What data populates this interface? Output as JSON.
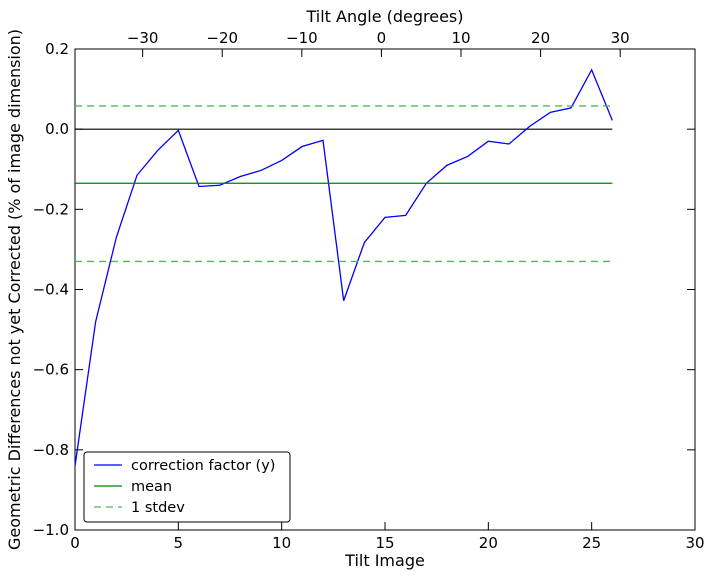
{
  "chart_data": {
    "type": "line",
    "title": "",
    "xlabel": "Tilt Image",
    "ylabel": "Geometric Differences not yet Corrected (% of image dimension)",
    "x2label": "Tilt Angle (degrees)",
    "xlim": [
      0,
      30
    ],
    "ylim": [
      -1.0,
      0.2
    ],
    "x2lim": [
      -38.5,
      39.4
    ],
    "xticks": [
      0,
      5,
      10,
      15,
      20,
      25,
      30
    ],
    "xtick_labels": [
      "0",
      "5",
      "10",
      "15",
      "20",
      "25",
      "30"
    ],
    "yticks": [
      -1.0,
      -0.8,
      -0.6,
      -0.4,
      -0.2,
      0.0,
      0.2
    ],
    "ytick_labels": [
      "−1.0",
      "−0.8",
      "−0.6",
      "−0.4",
      "−0.2",
      "0.0",
      "0.2"
    ],
    "x2ticks": [
      -30,
      -20,
      -10,
      0,
      10,
      20,
      30
    ],
    "x2tick_labels": [
      "−30",
      "−20",
      "−10",
      "0",
      "10",
      "20",
      "30"
    ],
    "grid": false,
    "legend_position": "lower-left",
    "series": [
      {
        "name": "correction factor (y)",
        "style": "solid",
        "color": "#0000ff",
        "x": [
          0,
          1,
          2,
          3,
          4,
          5,
          6,
          7,
          8,
          9,
          10,
          11,
          12,
          13,
          14,
          15,
          16,
          17,
          18,
          19,
          20,
          21,
          22,
          23,
          24,
          25,
          26
        ],
        "y": [
          -0.84,
          -0.48,
          -0.27,
          -0.115,
          -0.053,
          -0.003,
          -0.143,
          -0.14,
          -0.118,
          -0.103,
          -0.078,
          -0.043,
          -0.028,
          -0.428,
          -0.283,
          -0.22,
          -0.215,
          -0.135,
          -0.09,
          -0.068,
          -0.03,
          -0.037,
          0.007,
          0.042,
          0.053,
          0.148,
          0.022
        ]
      },
      {
        "name": "mean",
        "style": "solid",
        "color": "#008000",
        "x": [
          0,
          26
        ],
        "y": [
          -0.135,
          -0.135
        ]
      },
      {
        "name": "1 stdev",
        "style": "dashed",
        "color": "#55b855",
        "x": [
          0,
          26
        ],
        "y": [
          0.058,
          0.058
        ]
      },
      {
        "name": "",
        "style": "dashed",
        "color": "#55b855",
        "x": [
          0,
          26
        ],
        "y": [
          -0.33,
          -0.33
        ]
      }
    ],
    "reference_lines": [
      {
        "y": 0.0,
        "x": [
          0,
          26
        ],
        "color": "#000000",
        "style": "solid"
      }
    ]
  }
}
